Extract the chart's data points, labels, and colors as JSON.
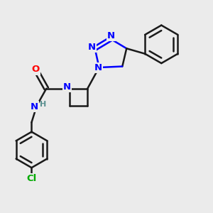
{
  "bg_color": "#ebebeb",
  "bond_color": "#1a1a1a",
  "n_color": "#0000ff",
  "o_color": "#ff0000",
  "cl_color": "#00aa00",
  "h_color": "#5a9090",
  "lw": 1.8,
  "fs": 9.5,
  "xlim": [
    0,
    10
  ],
  "ylim": [
    0,
    10
  ]
}
